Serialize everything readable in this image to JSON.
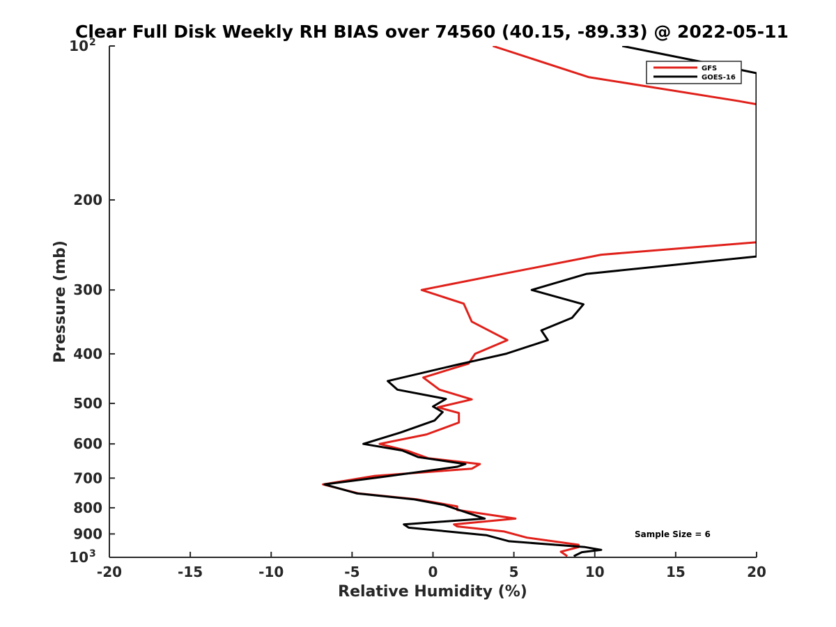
{
  "chart_data": {
    "type": "line",
    "title": "Clear Full Disk Weekly RH BIAS over 74560 (40.15, -89.33) @ 2022-05-11",
    "xlabel": "Relative Humidity (%)",
    "ylabel": "Pressure (mb)",
    "xlim": [
      -20,
      20
    ],
    "ylim": [
      100,
      1000
    ],
    "y_scale": "log",
    "y_direction": "reversed",
    "x_ticks": [
      {
        "value": -20,
        "label": "-20"
      },
      {
        "value": -15,
        "label": "-15"
      },
      {
        "value": -10,
        "label": "-10"
      },
      {
        "value": -5,
        "label": "-5"
      },
      {
        "value": 0,
        "label": "0"
      },
      {
        "value": 5,
        "label": "5"
      },
      {
        "value": 10,
        "label": "10"
      },
      {
        "value": 15,
        "label": "15"
      },
      {
        "value": 20,
        "label": "20"
      }
    ],
    "y_ticks": [
      {
        "value": 100,
        "base": "10",
        "exp": "2"
      },
      {
        "value": 200,
        "label": "200"
      },
      {
        "value": 300,
        "label": "300"
      },
      {
        "value": 400,
        "label": "400"
      },
      {
        "value": 500,
        "label": "500"
      },
      {
        "value": 600,
        "label": "600"
      },
      {
        "value": 700,
        "label": "700"
      },
      {
        "value": 800,
        "label": "800"
      },
      {
        "value": 900,
        "label": "900"
      },
      {
        "value": 1000,
        "base": "10",
        "exp": "3"
      }
    ],
    "legend_position": "top-right",
    "grid": false,
    "annotation": "Sample Size = 6",
    "series": [
      {
        "name": "GFS",
        "color": "#e0201a",
        "points": [
          [
            3.7,
            100
          ],
          [
            9.6,
            115
          ],
          [
            18.8,
            128
          ],
          [
            20,
            130
          ],
          [
            20,
            242
          ],
          [
            10.4,
            256
          ],
          [
            4.1,
            280
          ],
          [
            -0.7,
            300
          ],
          [
            1.9,
            319
          ],
          [
            2.4,
            346
          ],
          [
            4.6,
            376
          ],
          [
            2.6,
            400
          ],
          [
            2.2,
            418
          ],
          [
            -0.6,
            445
          ],
          [
            0.4,
            470
          ],
          [
            2.4,
            491
          ],
          [
            0.3,
            509
          ],
          [
            1.6,
            522
          ],
          [
            1.6,
            545
          ],
          [
            -0.4,
            575
          ],
          [
            -3.3,
            600
          ],
          [
            -1.5,
            620
          ],
          [
            -0.3,
            640
          ],
          [
            2.9,
            657
          ],
          [
            2.4,
            671
          ],
          [
            -3.6,
            693
          ],
          [
            -6.8,
            720
          ],
          [
            -4.6,
            750
          ],
          [
            -1.0,
            770
          ],
          [
            1.5,
            795
          ],
          [
            1.5,
            808
          ],
          [
            5.1,
            840
          ],
          [
            1.3,
            862
          ],
          [
            1.5,
            870
          ],
          [
            4.4,
            890
          ],
          [
            5.8,
            915
          ],
          [
            9.0,
            945
          ],
          [
            9.0,
            955
          ],
          [
            7.9,
            975
          ],
          [
            8.3,
            995
          ]
        ]
      },
      {
        "name": "GOES-16",
        "color": "#000000",
        "points": [
          [
            11.7,
            100
          ],
          [
            17.6,
            109
          ],
          [
            20,
            113
          ],
          [
            20,
            258
          ],
          [
            9.5,
            279
          ],
          [
            6.1,
            300
          ],
          [
            9.3,
            320
          ],
          [
            8.6,
            340
          ],
          [
            6.7,
            360
          ],
          [
            7.1,
            376
          ],
          [
            4.5,
            400
          ],
          [
            1.5,
            420
          ],
          [
            -2.8,
            452
          ],
          [
            -2.2,
            470
          ],
          [
            0.8,
            490
          ],
          [
            0.0,
            507
          ],
          [
            0.6,
            520
          ],
          [
            0.1,
            540
          ],
          [
            -2.0,
            570
          ],
          [
            -4.3,
            600
          ],
          [
            -1.9,
            618
          ],
          [
            -0.9,
            637
          ],
          [
            2.0,
            657
          ],
          [
            1.5,
            665
          ],
          [
            -3.1,
            696
          ],
          [
            -6.7,
            720
          ],
          [
            -4.7,
            750
          ],
          [
            -1.2,
            770
          ],
          [
            0.7,
            790
          ],
          [
            1.6,
            808
          ],
          [
            3.2,
            840
          ],
          [
            -1.8,
            862
          ],
          [
            -1.5,
            875
          ],
          [
            3.3,
            905
          ],
          [
            4.7,
            930
          ],
          [
            9.4,
            955
          ],
          [
            10.4,
            967
          ],
          [
            9.2,
            977
          ],
          [
            8.7,
            995
          ]
        ]
      }
    ]
  }
}
